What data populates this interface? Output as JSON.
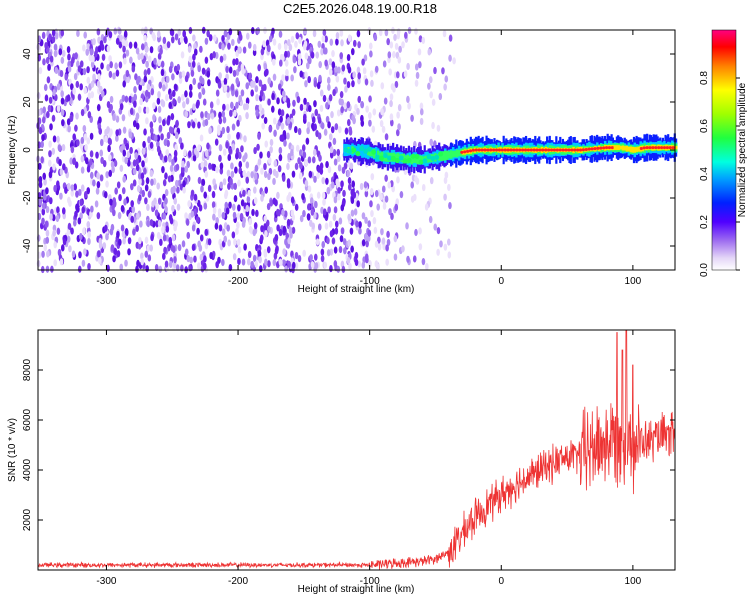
{
  "title": "C2E5.2026.048.19.00.R18",
  "chart_data": [
    {
      "type": "heatmap",
      "name": "spectrogram",
      "xlabel": "Height of straight line (km)",
      "ylabel": "Frequency (Hz)",
      "xlim": [
        -352,
        132
      ],
      "ylim": [
        -50,
        50
      ],
      "xticks": [
        -300,
        -200,
        -100,
        0,
        100
      ],
      "yticks": [
        -40,
        -20,
        0,
        20,
        40
      ],
      "signal_track": {
        "description_values": "frequency of strong signal vs height",
        "x": [
          -120,
          -110,
          -100,
          -90,
          -80,
          -70,
          -60,
          -50,
          -40,
          -30,
          -20,
          -10,
          0,
          10,
          20,
          40,
          60,
          80,
          90,
          100,
          110,
          120,
          130
        ],
        "y": [
          0,
          0,
          -1,
          -3,
          -3,
          -4,
          -4,
          -3,
          -2,
          -1,
          0,
          0,
          0,
          0,
          0,
          0,
          0,
          1,
          1,
          0,
          1,
          1,
          1
        ]
      },
      "noise_region": [
        -352,
        -55
      ],
      "colorbar": {
        "label": "Normalized spectral amplitude",
        "range": [
          0,
          1
        ],
        "ticks": [
          "0.0",
          "0.2",
          "0.4",
          "0.6",
          "0.8"
        ],
        "tick_values": [
          0.0,
          0.2,
          0.4,
          0.6,
          0.8
        ]
      }
    },
    {
      "type": "line",
      "name": "snr",
      "xlabel": "Height of straight line (km)",
      "ylabel": "SNR (10 * v/v)",
      "xlim": [
        -352,
        132
      ],
      "ylim": [
        0,
        9600
      ],
      "xticks": [
        -300,
        -200,
        -100,
        0,
        100
      ],
      "yticks": [
        2000,
        4000,
        6000,
        8000
      ],
      "color": "#ee3333",
      "trend": {
        "x": [
          -352,
          -100,
          -60,
          -50,
          -40,
          -30,
          -20,
          -10,
          0,
          10,
          20,
          30,
          40,
          50,
          60,
          70,
          80,
          90,
          100,
          110,
          120,
          132
        ],
        "y": [
          200,
          200,
          350,
          450,
          700,
          1400,
          2100,
          2600,
          3000,
          3400,
          3700,
          4000,
          4300,
          4500,
          4600,
          4900,
          5100,
          5300,
          5000,
          5100,
          5300,
          5400
        ]
      },
      "peaks": {
        "x": [
          88,
          92,
          95,
          100
        ],
        "y": [
          9500,
          8800,
          9600,
          8200
        ]
      }
    }
  ]
}
